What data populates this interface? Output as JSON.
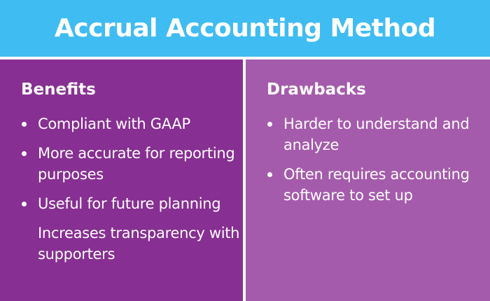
{
  "header": {
    "title": "Accrual Accounting Method"
  },
  "colors": {
    "header_background": "#3fbcf2",
    "benefits_background": "#872f92",
    "drawbacks_background": "#a55bac",
    "text": "#ffffff"
  },
  "benefits": {
    "heading": "Benefits",
    "items": [
      {
        "text": "Compliant with GAAP",
        "bullet": true
      },
      {
        "text": "More accurate for reporting purposes",
        "bullet": true
      },
      {
        "text": "Useful for future planning",
        "bullet": true
      },
      {
        "text": "Increases transparency with supporters",
        "bullet": false
      }
    ]
  },
  "drawbacks": {
    "heading": "Drawbacks",
    "items": [
      {
        "text": "Harder to understand and analyze",
        "bullet": true
      },
      {
        "text": "Often requires accounting software to set up",
        "bullet": true
      }
    ]
  }
}
